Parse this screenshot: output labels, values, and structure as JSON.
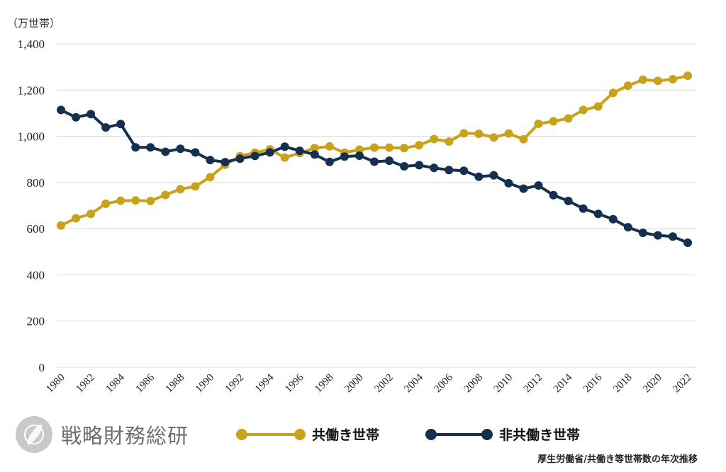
{
  "unit_label": "（万世帯）",
  "brand": {
    "logo_icon": "leaf-circle-icon",
    "name": "戦略財務総研"
  },
  "source_note": "厚生労働省/共働き等世帯数の年次推移",
  "colors": {
    "dual_income": "#C9A21B",
    "single_income": "#15304F",
    "grid": "#D9D9D9"
  },
  "chart_data": {
    "type": "line",
    "title": "",
    "xlabel": "",
    "ylabel": "（万世帯）",
    "x": [
      1980,
      1981,
      1982,
      1983,
      1984,
      1985,
      1986,
      1987,
      1988,
      1989,
      1990,
      1991,
      1992,
      1993,
      1994,
      1995,
      1996,
      1997,
      1998,
      1999,
      2000,
      2001,
      2002,
      2003,
      2004,
      2005,
      2006,
      2007,
      2008,
      2009,
      2010,
      2011,
      2012,
      2013,
      2014,
      2015,
      2016,
      2017,
      2018,
      2019,
      2020,
      2021,
      2022
    ],
    "xticks": [
      "1980",
      "1982",
      "1984",
      "1986",
      "1988",
      "1990",
      "1992",
      "1994",
      "1996",
      "1998",
      "2000",
      "2002",
      "2004",
      "2006",
      "2008",
      "2010",
      "2012",
      "2014",
      "2016",
      "2018",
      "2020",
      "2022"
    ],
    "ylim": [
      0,
      1400
    ],
    "yticks": [
      "0",
      "200",
      "400",
      "600",
      "800",
      "1,000",
      "1,200",
      "1,400"
    ],
    "grid": true,
    "legend_position": "bottom-center",
    "series": [
      {
        "name": "共働き世帯",
        "color": "#C9A21B",
        "values": [
          614,
          645,
          664,
          708,
          721,
          722,
          720,
          746,
          771,
          783,
          823,
          877,
          914,
          929,
          943,
          908,
          927,
          949,
          956,
          929,
          942,
          951,
          951,
          949,
          961,
          988,
          977,
          1013,
          1011,
          995,
          1012,
          987,
          1054,
          1065,
          1077,
          1114,
          1129,
          1188,
          1219,
          1245,
          1240,
          1247,
          1262
        ]
      },
      {
        "name": "非共働き世帯",
        "color": "#15304F",
        "values": [
          1114,
          1082,
          1096,
          1038,
          1053,
          952,
          952,
          933,
          946,
          930,
          897,
          888,
          903,
          915,
          930,
          955,
          937,
          921,
          889,
          912,
          916,
          890,
          894,
          870,
          875,
          863,
          854,
          851,
          825,
          831,
          797,
          773,
          787,
          745,
          720,
          687,
          664,
          641,
          606,
          582,
          571,
          566,
          539
        ]
      }
    ]
  }
}
